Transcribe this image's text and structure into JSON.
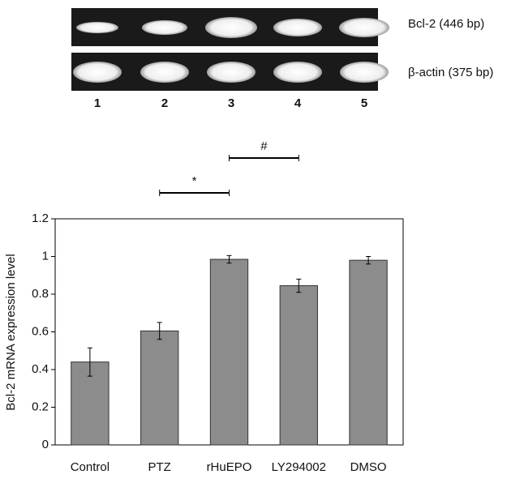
{
  "gel": {
    "bands": [
      "Bcl-2 (446 bp)",
      "β-actin (375 bp)"
    ],
    "lanes": [
      "1",
      "2",
      "3",
      "4",
      "5"
    ]
  },
  "chart_data": {
    "type": "bar",
    "ylabel": "Bcl-2 mRNA expression level",
    "categories": [
      "Control",
      "PTZ",
      "rHuEPO",
      "LY294002",
      "DMSO"
    ],
    "values": [
      0.44,
      0.605,
      0.985,
      0.845,
      0.98
    ],
    "errors": [
      0.075,
      0.045,
      0.02,
      0.035,
      0.02
    ],
    "color": "#8c8c8c",
    "ylim": [
      0,
      1.2
    ],
    "yticks": [
      0,
      0.2,
      0.4,
      0.6,
      0.8,
      1,
      1.2
    ],
    "annotations": [
      "*",
      "#"
    ]
  }
}
